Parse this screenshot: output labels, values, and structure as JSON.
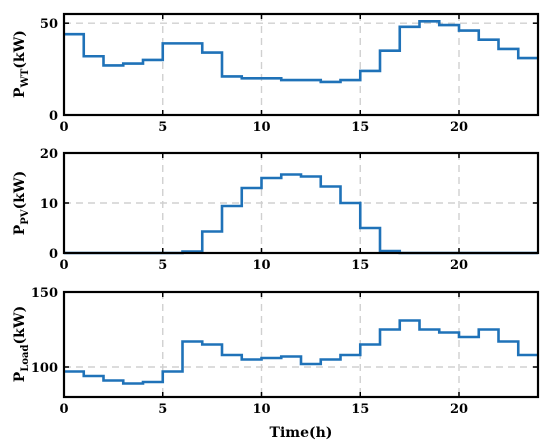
{
  "chart_data": [
    {
      "type": "line",
      "step": true,
      "ylabel_main": "P",
      "ylabel_sub": "WT",
      "ylabel_unit": "(kW)",
      "xlim": [
        0,
        24
      ],
      "ylim": [
        0,
        55
      ],
      "xticks": [
        0,
        5,
        10,
        15,
        20
      ],
      "yticks": [
        0,
        50
      ],
      "grid": true,
      "series": [
        {
          "color": "#1f72b8",
          "x": [
            0,
            1,
            2,
            3,
            4,
            5,
            6,
            7,
            8,
            9,
            10,
            11,
            12,
            13,
            14,
            15,
            16,
            17,
            18,
            19,
            20,
            21,
            22,
            23
          ],
          "values": [
            44,
            32,
            27,
            28,
            30,
            39,
            39,
            34,
            21,
            20,
            20,
            19,
            19,
            18,
            19,
            24,
            35,
            48,
            51,
            49,
            46,
            41,
            36,
            31
          ]
        }
      ]
    },
    {
      "type": "line",
      "step": true,
      "ylabel_main": "P",
      "ylabel_sub": "PV",
      "ylabel_unit": "(kW)",
      "xlim": [
        0,
        24
      ],
      "ylim": [
        0,
        20
      ],
      "xticks": [
        0,
        5,
        10,
        15,
        20
      ],
      "yticks": [
        0,
        10,
        20
      ],
      "grid": true,
      "series": [
        {
          "color": "#1f72b8",
          "x": [
            0,
            1,
            2,
            3,
            4,
            5,
            6,
            7,
            8,
            9,
            10,
            11,
            12,
            13,
            14,
            15,
            16,
            17,
            18,
            19,
            20,
            21,
            22,
            23
          ],
          "values": [
            0,
            0,
            0,
            0,
            0,
            0,
            0.3,
            4.3,
            9.4,
            13,
            15,
            15.7,
            15.3,
            13.3,
            10,
            5,
            0.4,
            0,
            0,
            0,
            0,
            0,
            0,
            0
          ]
        }
      ]
    },
    {
      "type": "line",
      "step": true,
      "ylabel_main": "P",
      "ylabel_sub": "Load",
      "ylabel_unit": "(kW)",
      "xlabel": "Time(h)",
      "xlim": [
        0,
        24
      ],
      "ylim": [
        80,
        150
      ],
      "xticks": [
        0,
        5,
        10,
        15,
        20
      ],
      "yticks": [
        100,
        150
      ],
      "grid": true,
      "series": [
        {
          "color": "#1f72b8",
          "x": [
            0,
            1,
            2,
            3,
            4,
            5,
            6,
            7,
            8,
            9,
            10,
            11,
            12,
            13,
            14,
            15,
            16,
            17,
            18,
            19,
            20,
            21,
            22,
            23
          ],
          "values": [
            97,
            94,
            91,
            89,
            90,
            97,
            117,
            115,
            108,
            105,
            106,
            107,
            102,
            105,
            108,
            115,
            125,
            131,
            125,
            123,
            120,
            125,
            117,
            108
          ]
        }
      ]
    }
  ]
}
